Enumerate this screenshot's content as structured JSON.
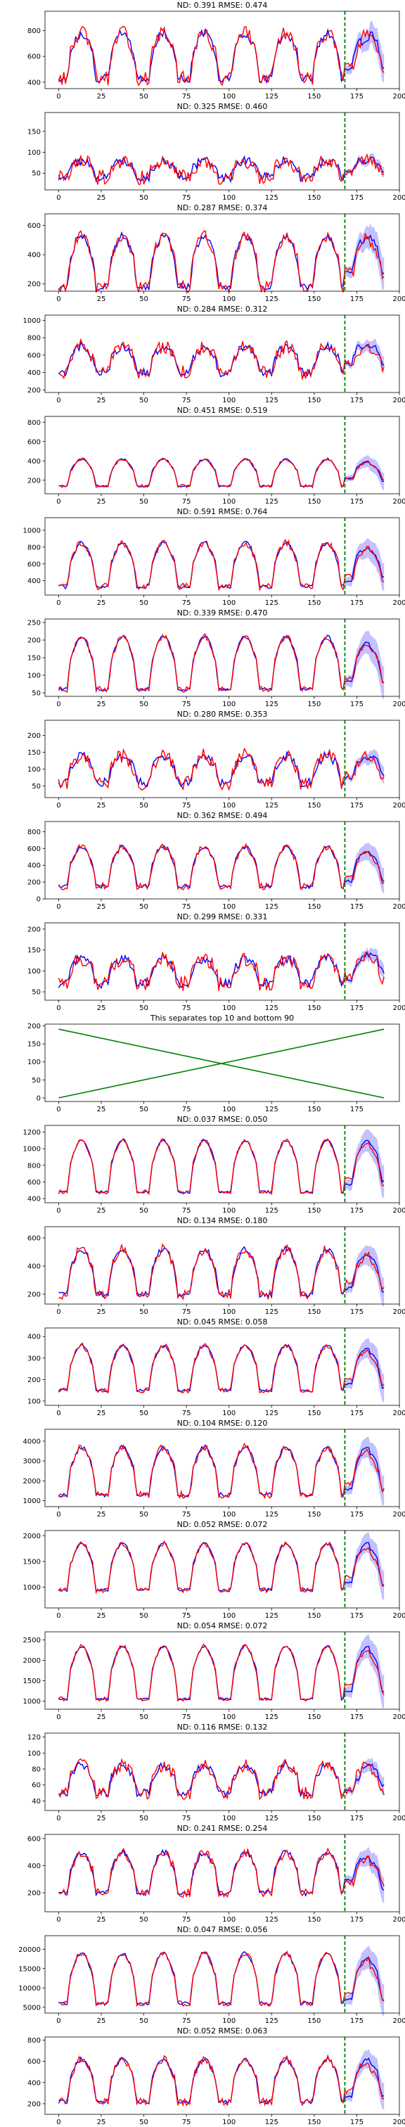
{
  "colors": {
    "actual": "#ff0000",
    "forecast": "#0000ff",
    "band": "#9999ff",
    "split": "#008000",
    "cross": "#008000",
    "axis": "#000000"
  },
  "chart_data": [
    {
      "type": "line",
      "title": "ND:  0.391 RMSE:  0.474",
      "xlim": [
        -8,
        200
      ],
      "ylim": [
        350,
        950
      ],
      "yticks": [
        400,
        600,
        800
      ],
      "xticks": [
        0,
        25,
        50,
        75,
        100,
        125,
        150,
        175,
        200
      ],
      "split_x": 168,
      "base": 430,
      "peak": 780,
      "noise": 55,
      "fc_end": [
        600,
        820,
        650,
        800,
        660
      ]
    },
    {
      "type": "line",
      "title": "ND:  0.325 RMSE:  0.460",
      "xlim": [
        -8,
        200
      ],
      "ylim": [
        10,
        195
      ],
      "yticks": [
        50,
        100,
        150
      ],
      "xticks": [
        0,
        25,
        50,
        75,
        100,
        125,
        150,
        175,
        200
      ],
      "split_x": 168,
      "base": 40,
      "peak": 80,
      "noise": 18,
      "fc_end": [
        70,
        100,
        80,
        90,
        75
      ]
    },
    {
      "type": "line",
      "title": "ND:  0.287 RMSE:  0.374",
      "xlim": [
        -8,
        200
      ],
      "ylim": [
        150,
        680
      ],
      "yticks": [
        200,
        400,
        600
      ],
      "xticks": [
        0,
        25,
        50,
        75,
        100,
        125,
        150,
        175,
        200
      ],
      "split_x": 168,
      "base": 180,
      "peak": 530,
      "noise": 40,
      "fc_end": [
        420,
        560,
        480,
        520,
        400
      ]
    },
    {
      "type": "line",
      "title": "ND:  0.284 RMSE:  0.312",
      "xlim": [
        -8,
        200
      ],
      "ylim": [
        170,
        1060
      ],
      "yticks": [
        200,
        400,
        600,
        800,
        1000
      ],
      "xticks": [
        0,
        25,
        50,
        75,
        100,
        125,
        150,
        175,
        200
      ],
      "split_x": 168,
      "base": 400,
      "peak": 700,
      "noise": 80,
      "fc_end": [
        600,
        850,
        700,
        760,
        650
      ]
    },
    {
      "type": "line",
      "title": "ND:  0.451 RMSE:  0.519",
      "xlim": [
        -8,
        200
      ],
      "ylim": [
        60,
        860
      ],
      "yticks": [
        200,
        400,
        600,
        800
      ],
      "xticks": [
        0,
        25,
        50,
        75,
        100,
        125,
        150,
        175,
        200
      ],
      "split_x": 168,
      "base": 140,
      "peak": 420,
      "noise": 15,
      "fc_end": [
        350,
        380,
        360,
        300,
        260
      ]
    },
    {
      "type": "line",
      "title": "ND:  0.591 RMSE:  0.764",
      "xlim": [
        -8,
        200
      ],
      "ylim": [
        230,
        1150
      ],
      "yticks": [
        400,
        600,
        800,
        1000
      ],
      "xticks": [
        0,
        25,
        50,
        75,
        100,
        125,
        150,
        175,
        200
      ],
      "split_x": 168,
      "base": 330,
      "peak": 850,
      "noise": 40,
      "fc_end": [
        500,
        800,
        700,
        650,
        600
      ]
    },
    {
      "type": "line",
      "title": "ND:  0.339 RMSE:  0.470",
      "xlim": [
        -8,
        200
      ],
      "ylim": [
        40,
        260
      ],
      "yticks": [
        50,
        100,
        150,
        200,
        250
      ],
      "xticks": [
        0,
        25,
        50,
        75,
        100,
        125,
        150,
        175,
        200
      ],
      "split_x": 168,
      "base": 60,
      "peak": 210,
      "noise": 8,
      "fc_end": [
        120,
        160,
        170,
        140,
        110
      ]
    },
    {
      "type": "line",
      "title": "ND:  0.280 RMSE:  0.353",
      "xlim": [
        -8,
        200
      ],
      "ylim": [
        15,
        245
      ],
      "yticks": [
        50,
        100,
        150,
        200
      ],
      "xticks": [
        0,
        25,
        50,
        75,
        100,
        125,
        150,
        175,
        200
      ],
      "split_x": 168,
      "base": 60,
      "peak": 140,
      "noise": 22,
      "fc_end": [
        100,
        130,
        120,
        140,
        110
      ]
    },
    {
      "type": "line",
      "title": "ND:  0.362 RMSE:  0.494",
      "xlim": [
        -8,
        200
      ],
      "ylim": [
        0,
        920
      ],
      "yticks": [
        0,
        200,
        400,
        600,
        800
      ],
      "xticks": [
        0,
        25,
        50,
        75,
        100,
        125,
        150,
        175,
        200
      ],
      "split_x": 168,
      "base": 150,
      "peak": 620,
      "noise": 40,
      "fc_end": [
        300,
        550,
        500,
        420,
        300
      ]
    },
    {
      "type": "line",
      "title": "ND:  0.299 RMSE:  0.331",
      "xlim": [
        -8,
        200
      ],
      "ylim": [
        30,
        215
      ],
      "yticks": [
        50,
        100,
        150,
        200
      ],
      "xticks": [
        0,
        25,
        50,
        75,
        100,
        125,
        150,
        175,
        200
      ],
      "split_x": 168,
      "base": 70,
      "peak": 130,
      "noise": 18,
      "fc_end": [
        100,
        130,
        150,
        160,
        140
      ]
    },
    {
      "type": "line",
      "title": "This separates top 10 and bottom 90",
      "xlim": [
        -8,
        200
      ],
      "ylim": [
        -10,
        205
      ],
      "yticks": [
        0,
        50,
        100,
        150,
        200
      ],
      "xticks": [
        0,
        25,
        50,
        75,
        100,
        125,
        150,
        175
      ],
      "lines": [
        {
          "x": [
            0,
            191
          ],
          "y": [
            0,
            191
          ]
        },
        {
          "x": [
            0,
            191
          ],
          "y": [
            191,
            0
          ]
        }
      ]
    },
    {
      "type": "line",
      "title": "ND:  0.037 RMSE:  0.050",
      "xlim": [
        -8,
        200
      ],
      "ylim": [
        350,
        1280
      ],
      "yticks": [
        400,
        600,
        800,
        1000,
        1200
      ],
      "xticks": [
        0,
        25,
        50,
        75,
        100,
        125,
        150,
        175,
        200
      ],
      "split_x": 168,
      "base": 480,
      "peak": 1100,
      "noise": 25,
      "fc_end": [
        700,
        1050,
        1100,
        1000,
        800
      ]
    },
    {
      "type": "line",
      "title": "ND:  0.134 RMSE:  0.180",
      "xlim": [
        -8,
        200
      ],
      "ylim": [
        130,
        680
      ],
      "yticks": [
        200,
        400,
        600
      ],
      "xticks": [
        0,
        25,
        50,
        75,
        100,
        125,
        150,
        175,
        200
      ],
      "split_x": 168,
      "base": 200,
      "peak": 520,
      "noise": 35,
      "fc_end": [
        300,
        450,
        420,
        380,
        260
      ]
    },
    {
      "type": "line",
      "title": "ND:  0.045 RMSE:  0.058",
      "xlim": [
        -8,
        200
      ],
      "ylim": [
        80,
        440
      ],
      "yticks": [
        100,
        200,
        300,
        400
      ],
      "xticks": [
        0,
        25,
        50,
        75,
        100,
        125,
        150,
        175,
        200
      ],
      "split_x": 168,
      "base": 150,
      "peak": 360,
      "noise": 12,
      "fc_end": [
        220,
        320,
        330,
        280,
        180
      ]
    },
    {
      "type": "line",
      "title": "ND:  0.104 RMSE:  0.120",
      "xlim": [
        -8,
        200
      ],
      "ylim": [
        700,
        4600
      ],
      "yticks": [
        1000,
        2000,
        3000,
        4000
      ],
      "xticks": [
        0,
        25,
        50,
        75,
        100,
        125,
        150,
        175,
        200
      ],
      "split_x": 168,
      "base": 1300,
      "peak": 3700,
      "noise": 180,
      "fc_end": [
        2000,
        3300,
        3800,
        3000,
        1800
      ]
    },
    {
      "type": "line",
      "title": "ND:  0.052 RMSE:  0.072",
      "xlim": [
        -8,
        200
      ],
      "ylim": [
        600,
        2100
      ],
      "yticks": [
        1000,
        1500,
        2000
      ],
      "xticks": [
        0,
        25,
        50,
        75,
        100,
        125,
        150,
        175,
        200
      ],
      "split_x": 168,
      "base": 950,
      "peak": 1850,
      "noise": 50,
      "fc_end": [
        1300,
        1800,
        1850,
        1600,
        1200
      ]
    },
    {
      "type": "line",
      "title": "ND:  0.054 RMSE:  0.072",
      "xlim": [
        -8,
        200
      ],
      "ylim": [
        800,
        2700
      ],
      "yticks": [
        1000,
        1500,
        2000,
        2500
      ],
      "xticks": [
        0,
        25,
        50,
        75,
        100,
        125,
        150,
        175,
        200
      ],
      "split_x": 168,
      "base": 1050,
      "peak": 2350,
      "noise": 50,
      "fc_end": [
        1500,
        2200,
        2300,
        2000,
        1500
      ]
    },
    {
      "type": "line",
      "title": "ND:  0.116 RMSE:  0.132",
      "xlim": [
        -8,
        200
      ],
      "ylim": [
        28,
        125
      ],
      "yticks": [
        40,
        60,
        80,
        100,
        120
      ],
      "xticks": [
        0,
        25,
        50,
        75,
        100,
        125,
        150,
        175,
        200
      ],
      "split_x": 168,
      "base": 50,
      "peak": 85,
      "noise": 8,
      "fc_end": [
        55,
        60,
        80,
        85,
        70
      ]
    },
    {
      "type": "line",
      "title": "ND:  0.241 RMSE:  0.254",
      "xlim": [
        -8,
        200
      ],
      "ylim": [
        60,
        630
      ],
      "yticks": [
        200,
        400,
        600
      ],
      "xticks": [
        0,
        25,
        50,
        75,
        100,
        125,
        150,
        175,
        200
      ],
      "split_x": 168,
      "base": 200,
      "peak": 500,
      "noise": 35,
      "fc_end": [
        420,
        460,
        400,
        350,
        260
      ]
    },
    {
      "type": "line",
      "title": "ND:  0.047 RMSE:  0.056",
      "xlim": [
        -8,
        200
      ],
      "ylim": [
        3500,
        23500
      ],
      "yticks": [
        5000,
        10000,
        15000,
        20000
      ],
      "xticks": [
        0,
        25,
        50,
        75,
        100,
        125,
        150,
        175,
        200
      ],
      "split_x": 168,
      "base": 6000,
      "peak": 19000,
      "noise": 700,
      "fc_end": [
        9000,
        15000,
        16000,
        14000,
        8000
      ]
    },
    {
      "type": "line",
      "title": "ND:  0.052 RMSE:  0.063",
      "xlim": [
        -8,
        200
      ],
      "ylim": [
        100,
        830
      ],
      "yticks": [
        200,
        400,
        600,
        800
      ],
      "xticks": [
        0,
        25,
        50,
        75,
        100,
        125,
        150,
        175,
        200
      ],
      "split_x": 168,
      "base": 220,
      "peak": 620,
      "noise": 35,
      "fc_end": [
        350,
        560,
        620,
        540,
        330
      ]
    }
  ]
}
